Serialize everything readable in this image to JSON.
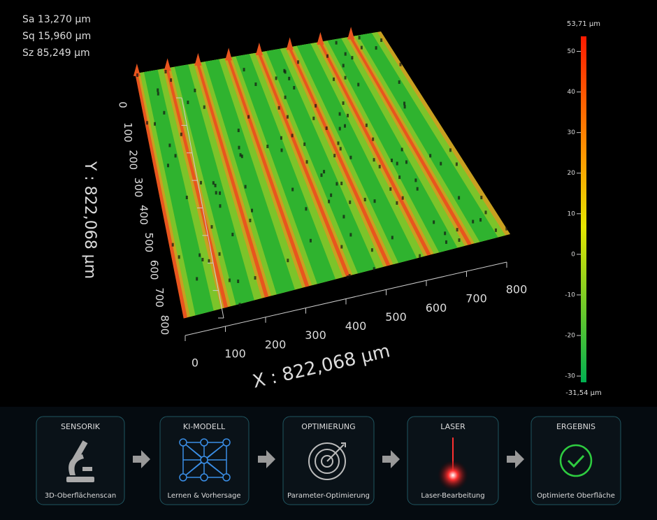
{
  "stats": [
    "Sa 13,270 µm",
    "Sq 15,960 µm",
    "Sz 85,249 µm"
  ],
  "plot": {
    "x_label": "X : 822,068 µm",
    "y_label": "Y : 822,068 µm",
    "xticks": [
      0,
      100,
      200,
      300,
      400,
      500,
      600,
      700,
      800
    ],
    "yticks": [
      0,
      100,
      200,
      300,
      400,
      500,
      600,
      700,
      800
    ]
  },
  "colorbar": {
    "lim": [
      {
        "value": -31.54,
        "label": "-31,54 µm"
      },
      {
        "value": 53.71,
        "label": "53,71 µm"
      }
    ],
    "ticks": [
      -30,
      -20,
      -10,
      0,
      10,
      20,
      30,
      40,
      50
    ]
  },
  "pipeline": [
    {
      "title": "SENSORIK",
      "caption": "3D-Oberflächenscan"
    },
    {
      "title": "KI-MODELL",
      "caption": "Lernen & Vorhersage"
    },
    {
      "title": "OPTIMIERUNG",
      "caption": "Parameter-Optimierung"
    },
    {
      "title": "LASER",
      "caption": "Laser-Bearbeitung"
    },
    {
      "title": "ERGEBNIS",
      "caption": "Optimierte Oberfläche"
    }
  ]
}
